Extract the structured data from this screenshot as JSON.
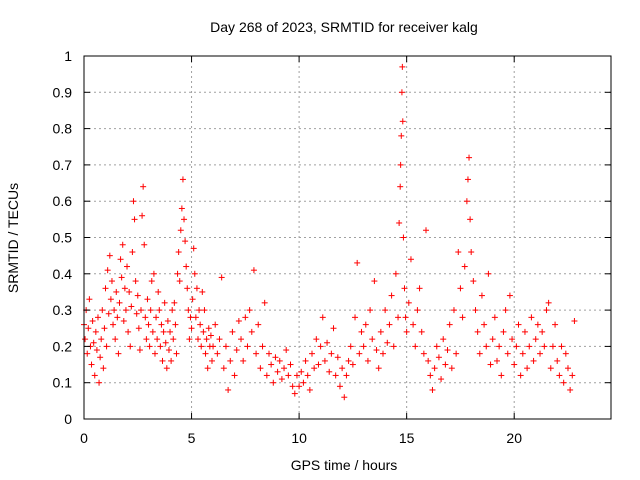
{
  "chart_data": {
    "type": "scatter",
    "title": "Day 268 of 2023, SRMTID for receiver kalg",
    "xlabel": "GPS time / hours",
    "ylabel": "SRMTID / TECUs",
    "xlim": [
      0,
      24.5
    ],
    "ylim": [
      0,
      1
    ],
    "xticks": [
      0,
      5,
      10,
      15,
      20
    ],
    "xtick_labels": [
      "0",
      "5",
      "10",
      "15",
      "20"
    ],
    "yticks": [
      0,
      0.1,
      0.2,
      0.3,
      0.4,
      0.5,
      0.6,
      0.7,
      0.8,
      0.9,
      1
    ],
    "ytick_labels": [
      "0",
      "0.1",
      "0.2",
      "0.3",
      "0.4",
      "0.5",
      "0.6",
      "0.7",
      "0.8",
      "0.9",
      "1"
    ],
    "grid": true,
    "marker": "plus",
    "color": "#ff0000",
    "series": [
      {
        "name": "SRMTID",
        "points": [
          [
            0.0,
            0.26
          ],
          [
            0.05,
            0.22
          ],
          [
            0.1,
            0.3
          ],
          [
            0.15,
            0.18
          ],
          [
            0.2,
            0.25
          ],
          [
            0.25,
            0.33
          ],
          [
            0.3,
            0.2
          ],
          [
            0.35,
            0.15
          ],
          [
            0.4,
            0.27
          ],
          [
            0.45,
            0.21
          ],
          [
            0.5,
            0.12
          ],
          [
            0.55,
            0.24
          ],
          [
            0.6,
            0.19
          ],
          [
            0.65,
            0.28
          ],
          [
            0.7,
            0.1
          ],
          [
            0.75,
            0.17
          ],
          [
            0.8,
            0.22
          ],
          [
            0.85,
            0.3
          ],
          [
            0.9,
            0.14
          ],
          [
            0.95,
            0.25
          ],
          [
            1.0,
            0.36
          ],
          [
            1.05,
            0.2
          ],
          [
            1.1,
            0.41
          ],
          [
            1.15,
            0.29
          ],
          [
            1.2,
            0.45
          ],
          [
            1.25,
            0.33
          ],
          [
            1.3,
            0.38
          ],
          [
            1.35,
            0.26
          ],
          [
            1.4,
            0.3
          ],
          [
            1.45,
            0.22
          ],
          [
            1.5,
            0.35
          ],
          [
            1.55,
            0.28
          ],
          [
            1.6,
            0.18
          ],
          [
            1.65,
            0.32
          ],
          [
            1.7,
            0.44
          ],
          [
            1.75,
            0.39
          ],
          [
            1.8,
            0.48
          ],
          [
            1.85,
            0.27
          ],
          [
            1.9,
            0.36
          ],
          [
            1.95,
            0.3
          ],
          [
            2.0,
            0.42
          ],
          [
            2.05,
            0.24
          ],
          [
            2.1,
            0.35
          ],
          [
            2.15,
            0.2
          ],
          [
            2.2,
            0.31
          ],
          [
            2.25,
            0.46
          ],
          [
            2.3,
            0.6
          ],
          [
            2.35,
            0.55
          ],
          [
            2.4,
            0.38
          ],
          [
            2.45,
            0.29
          ],
          [
            2.5,
            0.34
          ],
          [
            2.55,
            0.25
          ],
          [
            2.6,
            0.19
          ],
          [
            2.65,
            0.3
          ],
          [
            2.7,
            0.56
          ],
          [
            2.75,
            0.64
          ],
          [
            2.8,
            0.48
          ],
          [
            2.85,
            0.28
          ],
          [
            2.9,
            0.22
          ],
          [
            2.95,
            0.33
          ],
          [
            3.0,
            0.26
          ],
          [
            3.05,
            0.2
          ],
          [
            3.1,
            0.3
          ],
          [
            3.15,
            0.38
          ],
          [
            3.2,
            0.24
          ],
          [
            3.25,
            0.4
          ],
          [
            3.3,
            0.18
          ],
          [
            3.35,
            0.28
          ],
          [
            3.4,
            0.22
          ],
          [
            3.45,
            0.35
          ],
          [
            3.5,
            0.3
          ],
          [
            3.55,
            0.2
          ],
          [
            3.6,
            0.26
          ],
          [
            3.65,
            0.16
          ],
          [
            3.7,
            0.24
          ],
          [
            3.75,
            0.32
          ],
          [
            3.8,
            0.21
          ],
          [
            3.85,
            0.14
          ],
          [
            3.9,
            0.27
          ],
          [
            3.95,
            0.19
          ],
          [
            4.0,
            0.24
          ],
          [
            4.05,
            0.16
          ],
          [
            4.1,
            0.3
          ],
          [
            4.15,
            0.22
          ],
          [
            4.2,
            0.32
          ],
          [
            4.25,
            0.26
          ],
          [
            4.3,
            0.18
          ],
          [
            4.35,
            0.4
          ],
          [
            4.4,
            0.46
          ],
          [
            4.45,
            0.38
          ],
          [
            4.5,
            0.52
          ],
          [
            4.55,
            0.58
          ],
          [
            4.6,
            0.66
          ],
          [
            4.65,
            0.55
          ],
          [
            4.7,
            0.49
          ],
          [
            4.75,
            0.42
          ],
          [
            4.8,
            0.36
          ],
          [
            4.85,
            0.3
          ],
          [
            4.9,
            0.22
          ],
          [
            4.95,
            0.28
          ],
          [
            5.0,
            0.25
          ],
          [
            5.05,
            0.33
          ],
          [
            5.1,
            0.47
          ],
          [
            5.15,
            0.4
          ],
          [
            5.2,
            0.28
          ],
          [
            5.25,
            0.36
          ],
          [
            5.3,
            0.22
          ],
          [
            5.35,
            0.3
          ],
          [
            5.4,
            0.26
          ],
          [
            5.45,
            0.2
          ],
          [
            5.5,
            0.35
          ],
          [
            5.55,
            0.24
          ],
          [
            5.6,
            0.3
          ],
          [
            5.65,
            0.18
          ],
          [
            5.7,
            0.22
          ],
          [
            5.75,
            0.14
          ],
          [
            5.8,
            0.25
          ],
          [
            5.85,
            0.2
          ],
          [
            5.9,
            0.23
          ],
          [
            5.95,
            0.16
          ],
          [
            6.0,
            0.2
          ],
          [
            6.1,
            0.26
          ],
          [
            6.2,
            0.18
          ],
          [
            6.3,
            0.22
          ],
          [
            6.4,
            0.39
          ],
          [
            6.5,
            0.14
          ],
          [
            6.6,
            0.2
          ],
          [
            6.7,
            0.08
          ],
          [
            6.8,
            0.16
          ],
          [
            6.9,
            0.24
          ],
          [
            7.0,
            0.12
          ],
          [
            7.1,
            0.19
          ],
          [
            7.2,
            0.27
          ],
          [
            7.3,
            0.22
          ],
          [
            7.4,
            0.16
          ],
          [
            7.5,
            0.28
          ],
          [
            7.6,
            0.2
          ],
          [
            7.7,
            0.3
          ],
          [
            7.8,
            0.24
          ],
          [
            7.9,
            0.41
          ],
          [
            8.0,
            0.18
          ],
          [
            8.1,
            0.26
          ],
          [
            8.2,
            0.14
          ],
          [
            8.3,
            0.2
          ],
          [
            8.4,
            0.32
          ],
          [
            8.5,
            0.12
          ],
          [
            8.6,
            0.18
          ],
          [
            8.7,
            0.15
          ],
          [
            8.8,
            0.1
          ],
          [
            8.9,
            0.17
          ],
          [
            9.0,
            0.13
          ],
          [
            9.1,
            0.16
          ],
          [
            9.2,
            0.11
          ],
          [
            9.3,
            0.14
          ],
          [
            9.4,
            0.19
          ],
          [
            9.5,
            0.12
          ],
          [
            9.6,
            0.15
          ],
          [
            9.7,
            0.09
          ],
          [
            9.8,
            0.07
          ],
          [
            9.9,
            0.12
          ],
          [
            10.0,
            0.09
          ],
          [
            10.1,
            0.13
          ],
          [
            10.2,
            0.1
          ],
          [
            10.3,
            0.16
          ],
          [
            10.4,
            0.12
          ],
          [
            10.5,
            0.08
          ],
          [
            10.6,
            0.18
          ],
          [
            10.7,
            0.14
          ],
          [
            10.8,
            0.22
          ],
          [
            10.9,
            0.15
          ],
          [
            11.0,
            0.2
          ],
          [
            11.1,
            0.28
          ],
          [
            11.2,
            0.16
          ],
          [
            11.3,
            0.21
          ],
          [
            11.4,
            0.13
          ],
          [
            11.5,
            0.18
          ],
          [
            11.6,
            0.25
          ],
          [
            11.7,
            0.12
          ],
          [
            11.8,
            0.17
          ],
          [
            11.9,
            0.09
          ],
          [
            12.0,
            0.14
          ],
          [
            12.1,
            0.06
          ],
          [
            12.2,
            0.12
          ],
          [
            12.3,
            0.16
          ],
          [
            12.4,
            0.2
          ],
          [
            12.5,
            0.15
          ],
          [
            12.6,
            0.28
          ],
          [
            12.7,
            0.43
          ],
          [
            12.8,
            0.18
          ],
          [
            12.9,
            0.24
          ],
          [
            13.0,
            0.2
          ],
          [
            13.1,
            0.26
          ],
          [
            13.2,
            0.16
          ],
          [
            13.3,
            0.3
          ],
          [
            13.4,
            0.22
          ],
          [
            13.5,
            0.38
          ],
          [
            13.6,
            0.19
          ],
          [
            13.7,
            0.14
          ],
          [
            13.8,
            0.24
          ],
          [
            13.9,
            0.18
          ],
          [
            14.0,
            0.3
          ],
          [
            14.1,
            0.21
          ],
          [
            14.2,
            0.26
          ],
          [
            14.3,
            0.34
          ],
          [
            14.4,
            0.2
          ],
          [
            14.5,
            0.4
          ],
          [
            14.6,
            0.28
          ],
          [
            14.65,
            0.54
          ],
          [
            14.7,
            0.64
          ],
          [
            14.72,
            0.7
          ],
          [
            14.75,
            0.78
          ],
          [
            14.78,
            0.9
          ],
          [
            14.8,
            0.97
          ],
          [
            14.82,
            0.82
          ],
          [
            14.85,
            0.5
          ],
          [
            14.9,
            0.36
          ],
          [
            14.95,
            0.28
          ],
          [
            15.0,
            0.24
          ],
          [
            15.1,
            0.32
          ],
          [
            15.2,
            0.44
          ],
          [
            15.3,
            0.26
          ],
          [
            15.4,
            0.2
          ],
          [
            15.5,
            0.3
          ],
          [
            15.6,
            0.36
          ],
          [
            15.7,
            0.24
          ],
          [
            15.8,
            0.18
          ],
          [
            15.9,
            0.52
          ],
          [
            16.0,
            0.16
          ],
          [
            16.1,
            0.12
          ],
          [
            16.2,
            0.08
          ],
          [
            16.3,
            0.14
          ],
          [
            16.4,
            0.2
          ],
          [
            16.5,
            0.17
          ],
          [
            16.6,
            0.11
          ],
          [
            16.7,
            0.22
          ],
          [
            16.8,
            0.15
          ],
          [
            16.9,
            0.19
          ],
          [
            17.0,
            0.26
          ],
          [
            17.1,
            0.14
          ],
          [
            17.2,
            0.3
          ],
          [
            17.3,
            0.18
          ],
          [
            17.4,
            0.46
          ],
          [
            17.5,
            0.36
          ],
          [
            17.6,
            0.28
          ],
          [
            17.7,
            0.42
          ],
          [
            17.8,
            0.6
          ],
          [
            17.85,
            0.66
          ],
          [
            17.9,
            0.72
          ],
          [
            17.95,
            0.55
          ],
          [
            18.0,
            0.46
          ],
          [
            18.1,
            0.38
          ],
          [
            18.2,
            0.3
          ],
          [
            18.3,
            0.24
          ],
          [
            18.4,
            0.18
          ],
          [
            18.5,
            0.34
          ],
          [
            18.6,
            0.26
          ],
          [
            18.7,
            0.2
          ],
          [
            18.8,
            0.4
          ],
          [
            18.9,
            0.15
          ],
          [
            19.0,
            0.22
          ],
          [
            19.1,
            0.28
          ],
          [
            19.2,
            0.16
          ],
          [
            19.3,
            0.2
          ],
          [
            19.4,
            0.12
          ],
          [
            19.5,
            0.24
          ],
          [
            19.6,
            0.3
          ],
          [
            19.7,
            0.18
          ],
          [
            19.8,
            0.34
          ],
          [
            19.9,
            0.22
          ],
          [
            20.0,
            0.15
          ],
          [
            20.1,
            0.2
          ],
          [
            20.2,
            0.26
          ],
          [
            20.3,
            0.12
          ],
          [
            20.4,
            0.18
          ],
          [
            20.5,
            0.24
          ],
          [
            20.6,
            0.14
          ],
          [
            20.7,
            0.2
          ],
          [
            20.8,
            0.28
          ],
          [
            20.9,
            0.16
          ],
          [
            21.0,
            0.22
          ],
          [
            21.1,
            0.26
          ],
          [
            21.2,
            0.18
          ],
          [
            21.3,
            0.24
          ],
          [
            21.4,
            0.2
          ],
          [
            21.5,
            0.3
          ],
          [
            21.6,
            0.32
          ],
          [
            21.7,
            0.14
          ],
          [
            21.8,
            0.2
          ],
          [
            21.9,
            0.26
          ],
          [
            22.0,
            0.16
          ],
          [
            22.1,
            0.12
          ],
          [
            22.2,
            0.2
          ],
          [
            22.3,
            0.1
          ],
          [
            22.4,
            0.18
          ],
          [
            22.5,
            0.14
          ],
          [
            22.6,
            0.08
          ],
          [
            22.7,
            0.12
          ],
          [
            22.8,
            0.27
          ]
        ]
      }
    ]
  }
}
